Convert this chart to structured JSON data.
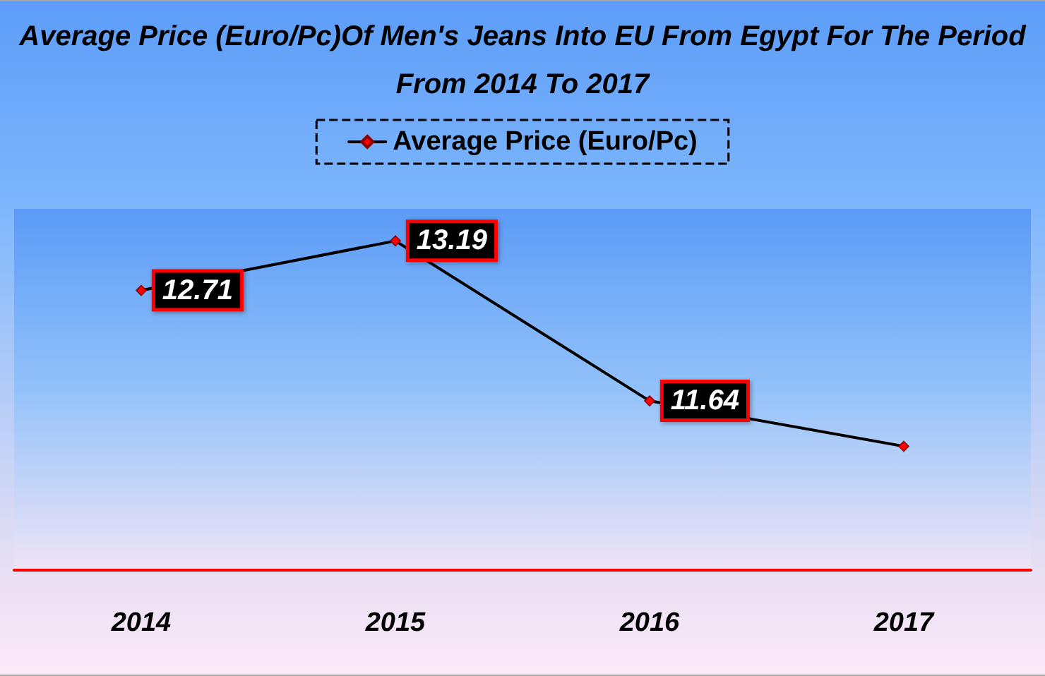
{
  "chart_data": {
    "type": "line",
    "title": "Average Price (Euro/Pc)Of Men's Jeans Into EU From Egypt For The Period From 2014 To 2017",
    "categories": [
      "2014",
      "2015",
      "2016",
      "2017"
    ],
    "series": [
      {
        "name": "Average Price (Euro/Pc)",
        "color": "#000000",
        "values": [
          12.71,
          13.19,
          11.64,
          11.2
        ],
        "value_labels": [
          "12.71",
          "13.19",
          "11.64",
          null
        ]
      }
    ],
    "ylim": [
      10,
      13.5
    ],
    "legend": "top",
    "marker": "diamond",
    "line_style": "solid"
  }
}
